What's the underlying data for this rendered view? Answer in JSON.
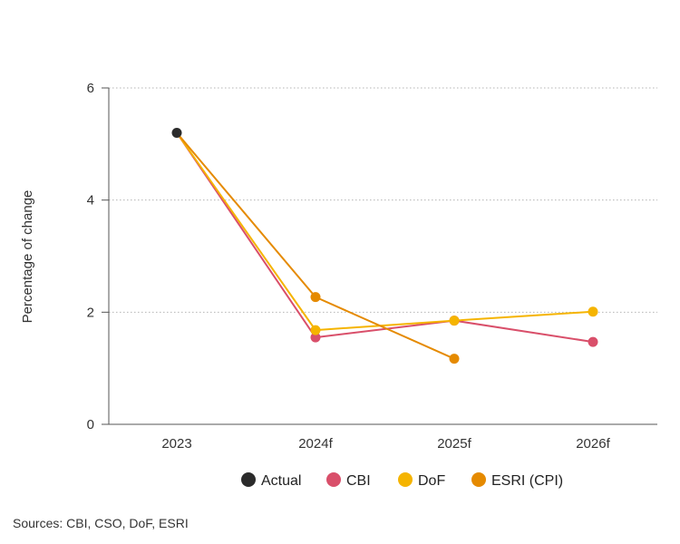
{
  "chart_data": {
    "type": "line",
    "title": "",
    "xlabel": "",
    "ylabel": "Percentage of change",
    "categories": [
      "2023",
      "2024f",
      "2025f",
      "2026f"
    ],
    "ylim": [
      0,
      6
    ],
    "yticks": [
      0,
      2,
      4,
      6
    ],
    "grid": "horizontal dotted",
    "legend_position": "bottom",
    "series": [
      {
        "name": "Actual",
        "color": "#2b2b2b",
        "values": [
          5.2,
          null,
          null,
          null
        ]
      },
      {
        "name": "CBI",
        "color": "#d94f6a",
        "values": [
          5.2,
          1.55,
          1.85,
          1.47
        ]
      },
      {
        "name": "DoF",
        "color": "#f5b400",
        "values": [
          5.2,
          1.68,
          1.85,
          2.01
        ]
      },
      {
        "name": "ESRI (CPI)",
        "color": "#e58a00",
        "values": [
          5.2,
          2.27,
          1.17,
          null
        ]
      }
    ]
  },
  "footer": {
    "source": "Sources: CBI, CSO, DoF, ESRI"
  }
}
